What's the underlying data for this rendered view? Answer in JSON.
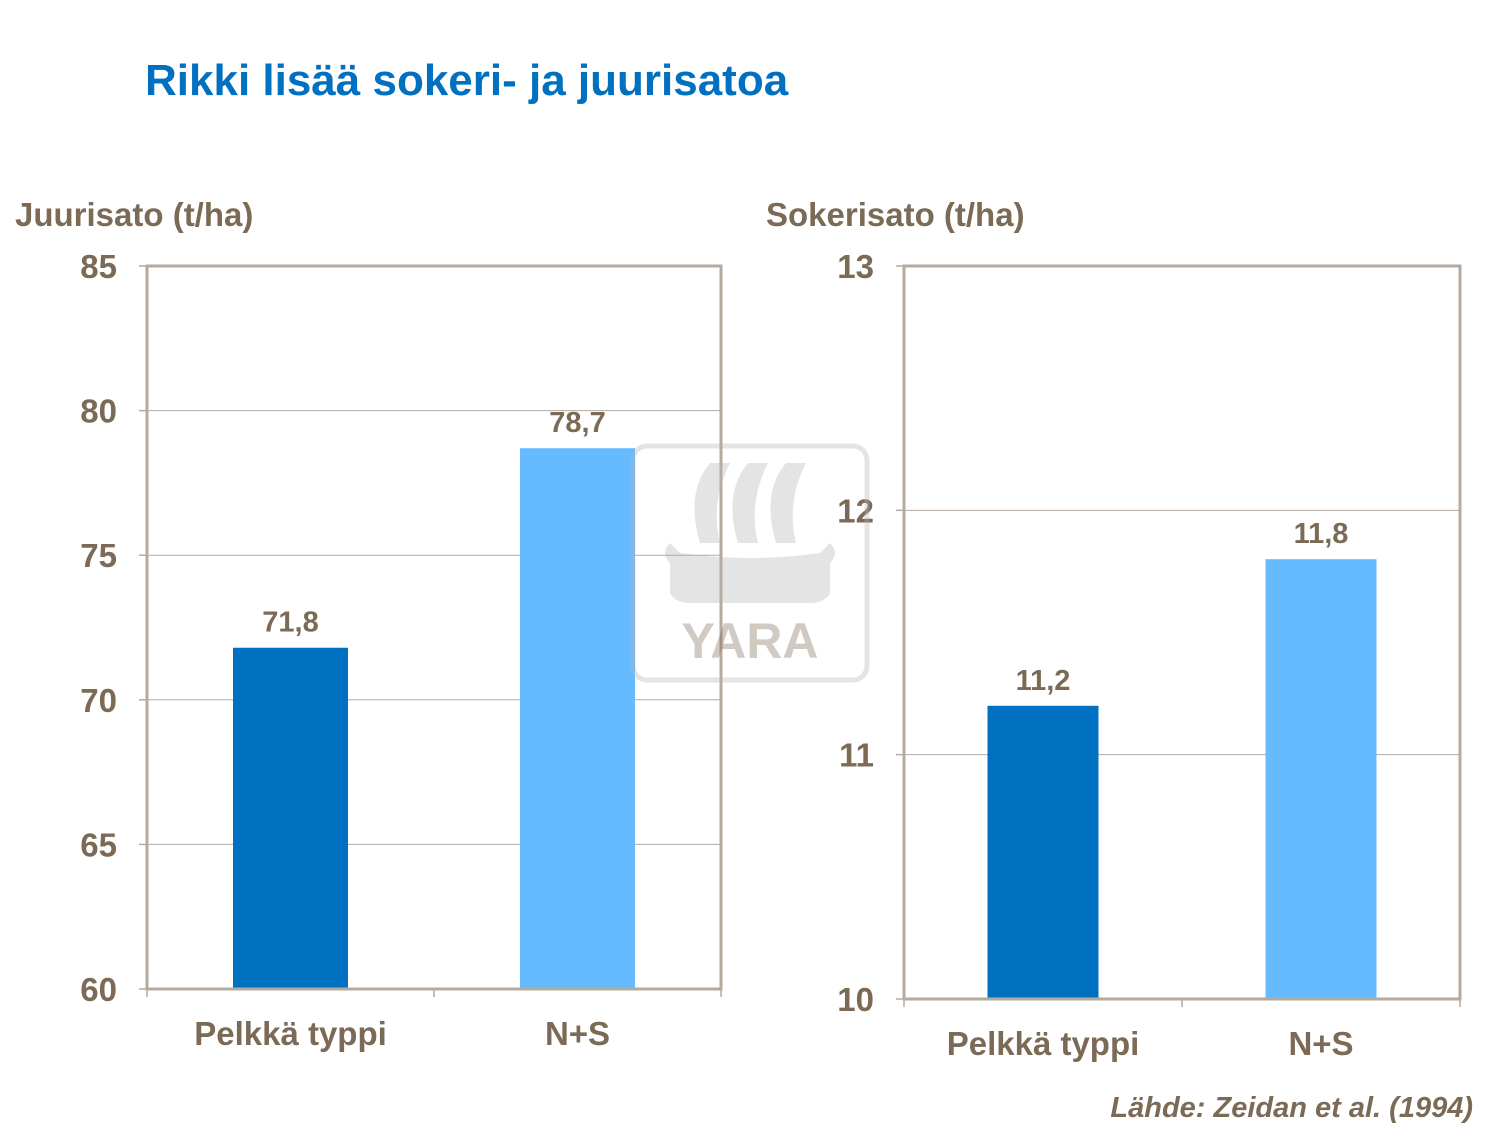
{
  "title": "Rikki lisää sokeri- ja juurisatoa",
  "source": "Lähde: Zeidan et al. (1994)",
  "watermark": "YARA",
  "colors": {
    "pelkka": "#0070C0",
    "ns": "#66BBFF",
    "text": "#7B6A55",
    "frame": "#B5AA9F"
  },
  "chart_data": [
    {
      "type": "bar",
      "ylabel": "Juurisato (t/ha)",
      "categories": [
        "Pelkkä typpi",
        "N+S"
      ],
      "values": [
        71.8,
        78.7
      ],
      "data_labels": [
        "71,8",
        "78,7"
      ],
      "ylim": [
        60,
        85
      ],
      "yticks": [
        "60",
        "65",
        "70",
        "75",
        "80",
        "85"
      ],
      "grid": true
    },
    {
      "type": "bar",
      "ylabel": "Sokerisato (t/ha)",
      "categories": [
        "Pelkkä typpi",
        "N+S"
      ],
      "values": [
        11.2,
        11.8
      ],
      "data_labels": [
        "11,2",
        "11,8"
      ],
      "ylim": [
        10,
        13
      ],
      "yticks": [
        "10",
        "11",
        "12",
        "13"
      ],
      "grid": true
    }
  ]
}
